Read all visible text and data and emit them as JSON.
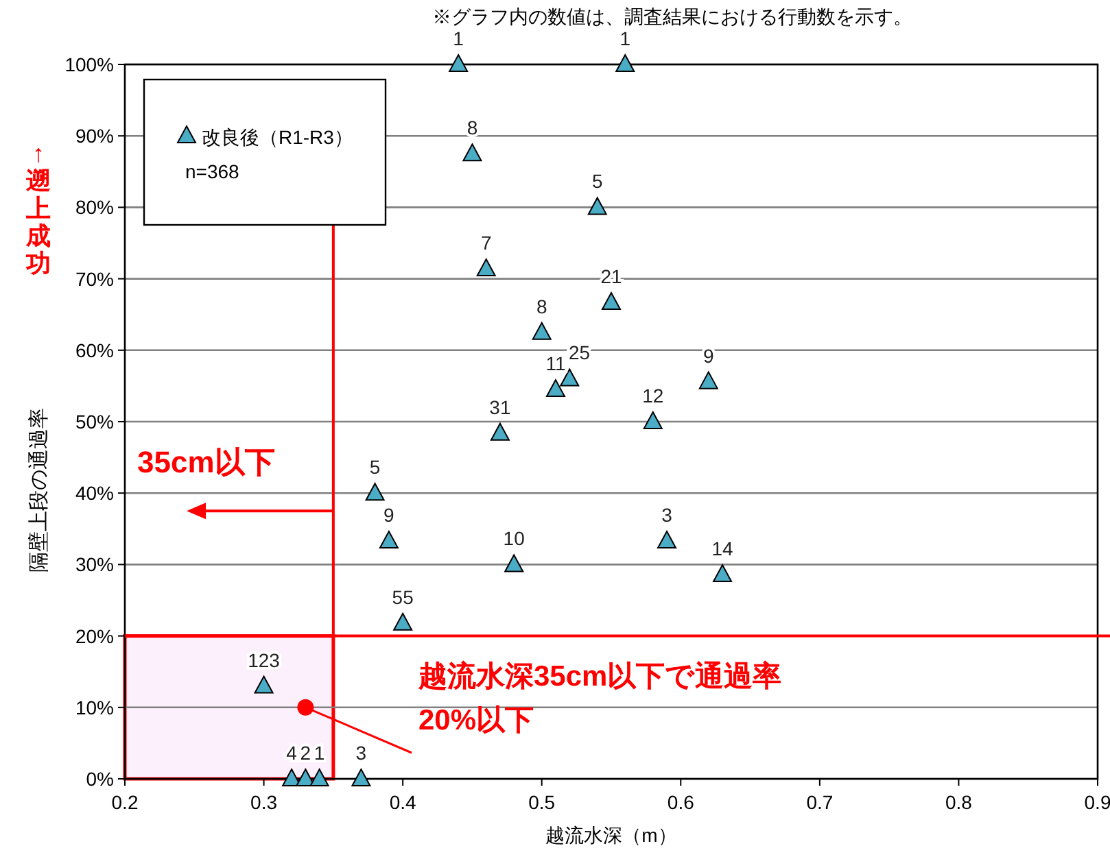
{
  "chart_data": {
    "type": "scatter",
    "xlabel": "越流水深（m）",
    "ylabel": "隔壁上段の通過率",
    "annotations": [
      "※グラフ内の数値は、調査結果における行動数を示す。",
      "↑遡上成功",
      "n=368",
      {
        "text": "1",
        "x": 0.44,
        "y": 100
      },
      {
        "text": "1",
        "x": 0.56,
        "y": 100
      },
      {
        "text": "8",
        "x": 0.45,
        "y": 87.5
      },
      {
        "text": "5",
        "x": 0.54,
        "y": 80
      },
      {
        "text": "7",
        "x": 0.46,
        "y": 71.4
      },
      {
        "text": "21",
        "x": 0.55,
        "y": 66.7
      },
      {
        "text": "8",
        "x": 0.5,
        "y": 62.5
      },
      {
        "text": "11",
        "x": 0.51,
        "y": 54.5
      },
      {
        "text": "25",
        "x": 0.52,
        "y": 56
      },
      {
        "text": "31",
        "x": 0.47,
        "y": 48.4
      },
      {
        "text": "12",
        "x": 0.58,
        "y": 50
      },
      {
        "text": "9",
        "x": 0.62,
        "y": 55.6
      },
      {
        "text": "5",
        "x": 0.38,
        "y": 40
      },
      {
        "text": "9",
        "x": 0.39,
        "y": 33.3
      },
      {
        "text": "10",
        "x": 0.48,
        "y": 30
      },
      {
        "text": "3",
        "x": 0.59,
        "y": 33.3
      },
      {
        "text": "14",
        "x": 0.63,
        "y": 28.6
      },
      {
        "text": "55",
        "x": 0.4,
        "y": 21.8
      },
      {
        "text": "123",
        "x": 0.3,
        "y": 13
      },
      {
        "text": "4",
        "x": 0.32,
        "y": 0
      },
      {
        "text": "2",
        "x": 0.33,
        "y": 0
      },
      {
        "text": "1",
        "x": 0.34,
        "y": 0
      },
      {
        "text": "3",
        "x": 0.37,
        "y": 0
      },
      {
        "text": "越流水深35cm以下で通過率\n20%以下",
        "x": 0.33,
        "y": 10
      }
    ],
    "series": [
      {
        "name": "改良後（R1-R3）",
        "color": "#4bacc6",
        "x": [
          0.44,
          0.56,
          0.45,
          0.54,
          0.46,
          0.55,
          0.5,
          0.51,
          0.52,
          0.47,
          0.58,
          0.62,
          0.38,
          0.39,
          0.48,
          0.59,
          0.63,
          0.4,
          0.3,
          0.32,
          0.33,
          0.34,
          0.37
        ],
        "values": [
          100,
          100,
          87.5,
          80,
          71.4,
          66.7,
          62.5,
          54.5,
          56,
          48.4,
          50,
          55.6,
          40,
          33.3,
          30,
          33.3,
          28.6,
          21.8,
          13,
          0,
          0,
          0,
          0
        ]
      }
    ],
    "xlim": [
      0.2,
      0.9
    ],
    "xticks": [
      0.2,
      0.3,
      0.4,
      0.5,
      0.6,
      0.7,
      0.8,
      0.9
    ],
    "ylim": [
      0,
      100
    ],
    "yticks": [
      {
        "value": 0,
        "label": "0%"
      },
      {
        "value": 10,
        "label": "10%"
      },
      {
        "value": 20,
        "label": "20%"
      },
      {
        "value": 30,
        "label": "30%"
      },
      {
        "value": 40,
        "label": "40%"
      },
      {
        "value": 50,
        "label": "50%"
      },
      {
        "value": 60,
        "label": "60%"
      },
      {
        "value": 70,
        "label": "70%"
      },
      {
        "value": 80,
        "label": "80%"
      },
      {
        "value": 90,
        "label": "90%"
      },
      {
        "value": 100,
        "label": "100%"
      }
    ],
    "grid": "y",
    "legend": "top left",
    "marker": "triangle",
    "ref_lines": [
      {
        "axis": "x",
        "value": 0.35,
        "label": "35cm以下",
        "color": "#ff0000"
      },
      {
        "axis": "y",
        "value": 20,
        "color": "#ff0000"
      }
    ],
    "bands": [
      {
        "axis": "x",
        "from": 0.2,
        "to": 0.35,
        "color": "#fdf0fd"
      }
    ]
  }
}
